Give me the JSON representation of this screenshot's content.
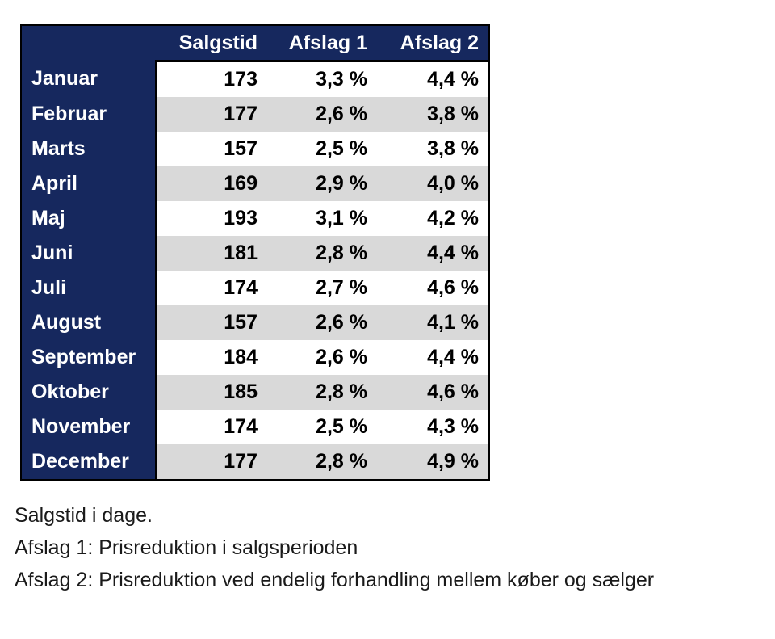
{
  "colors": {
    "page_bg": "#ffffff",
    "navy": "#16285e",
    "stripe": "#d9d9d9",
    "border": "#000000",
    "header_text": "#ffffff",
    "data_text": "#000000",
    "footnote_text": "#1a1a1a"
  },
  "table": {
    "headers": [
      "Salgstid",
      "Afslag 1",
      "Afslag 2"
    ],
    "rows": [
      {
        "month": "Januar",
        "values": [
          "173",
          "3,3 %",
          "4,4 %"
        ]
      },
      {
        "month": "Februar",
        "values": [
          "177",
          "2,6 %",
          "3,8 %"
        ]
      },
      {
        "month": "Marts",
        "values": [
          "157",
          "2,5 %",
          "3,8 %"
        ]
      },
      {
        "month": "April",
        "values": [
          "169",
          "2,9 %",
          "4,0 %"
        ]
      },
      {
        "month": "Maj",
        "values": [
          "193",
          "3,1 %",
          "4,2 %"
        ]
      },
      {
        "month": "Juni",
        "values": [
          "181",
          "2,8 %",
          "4,4 %"
        ]
      },
      {
        "month": "Juli",
        "values": [
          "174",
          "2,7 %",
          "4,6 %"
        ]
      },
      {
        "month": "August",
        "values": [
          "157",
          "2,6 %",
          "4,1 %"
        ]
      },
      {
        "month": "September",
        "values": [
          "184",
          "2,6 %",
          "4,4 %"
        ]
      },
      {
        "month": "Oktober",
        "values": [
          "185",
          "2,8 %",
          "4,6 %"
        ]
      },
      {
        "month": "November",
        "values": [
          "174",
          "2,5 %",
          "4,3 %"
        ]
      },
      {
        "month": "December",
        "values": [
          "177",
          "2,8 %",
          "4,9 %"
        ]
      }
    ]
  },
  "footnotes": [
    "Salgstid i dage.",
    "Afslag 1: Prisreduktion i salgsperioden",
    "Afslag 2: Prisreduktion ved endelig forhandling mellem køber og sælger"
  ],
  "chart_data": {
    "type": "table",
    "categories": [
      "Januar",
      "Februar",
      "Marts",
      "April",
      "Maj",
      "Juni",
      "Juli",
      "August",
      "September",
      "Oktober",
      "November",
      "December"
    ],
    "series": [
      {
        "name": "Salgstid",
        "unit": "dage",
        "values": [
          173,
          177,
          157,
          169,
          193,
          181,
          174,
          157,
          184,
          185,
          174,
          177
        ]
      },
      {
        "name": "Afslag 1",
        "unit": "%",
        "values": [
          3.3,
          2.6,
          2.5,
          2.9,
          3.1,
          2.8,
          2.7,
          2.6,
          2.6,
          2.8,
          2.5,
          2.8
        ]
      },
      {
        "name": "Afslag 2",
        "unit": "%",
        "values": [
          4.4,
          3.8,
          3.8,
          4.0,
          4.2,
          4.4,
          4.6,
          4.1,
          4.4,
          4.6,
          4.3,
          4.9
        ]
      }
    ],
    "annotations": [
      "Salgstid i dage.",
      "Afslag 1: Prisreduktion i salgsperioden",
      "Afslag 2: Prisreduktion ved endelig forhandling mellem køber og sælger"
    ]
  }
}
